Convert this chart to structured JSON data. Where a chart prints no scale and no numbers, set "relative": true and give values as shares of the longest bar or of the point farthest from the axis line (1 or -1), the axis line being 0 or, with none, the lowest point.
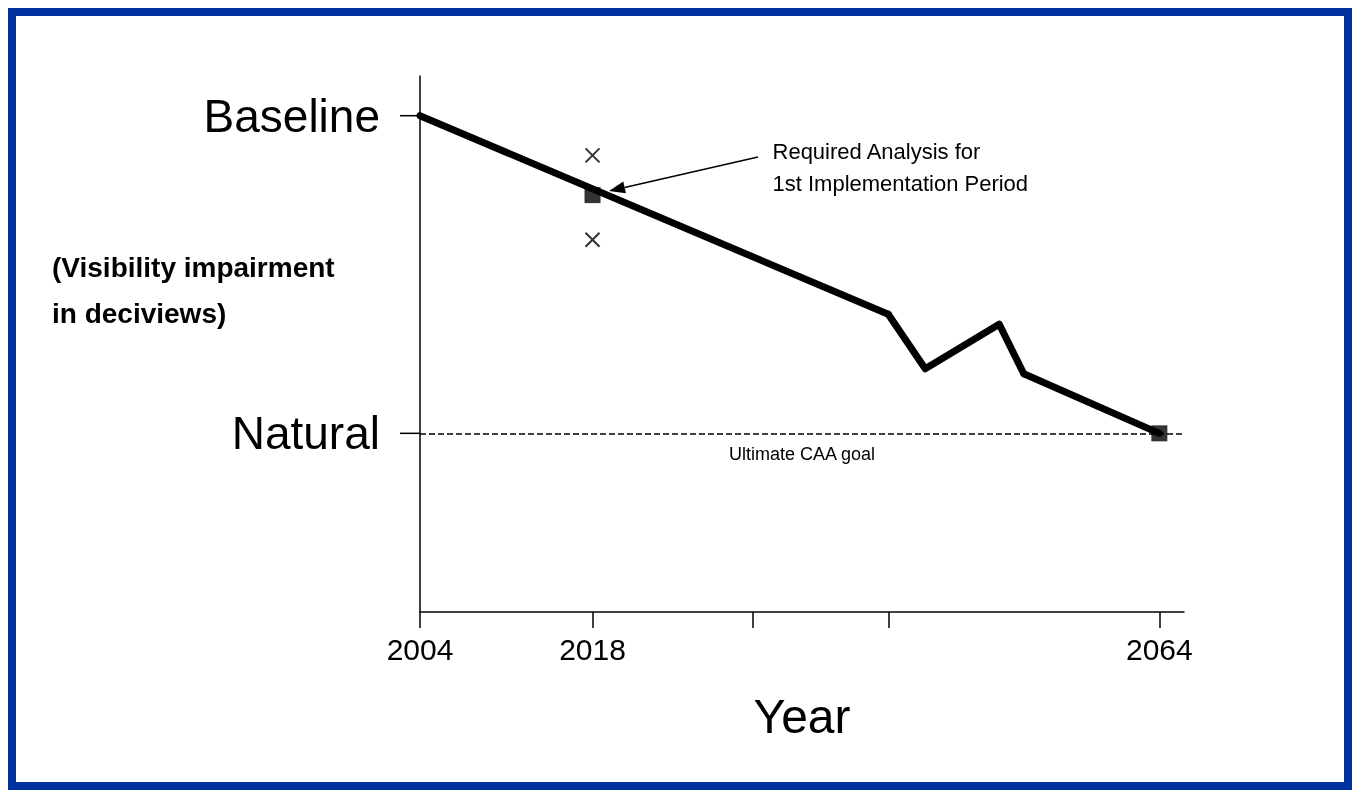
{
  "chart_data": {
    "type": "line",
    "relative": true,
    "xlabel": "Year",
    "ylabel": "(Visibility impairment in deciviews)",
    "xlim": [
      2004,
      2066
    ],
    "xticks": [
      2004,
      2018,
      {
        "value": 2031,
        "label": null
      },
      {
        "value": 2042,
        "label": null
      },
      2064
    ],
    "grid": false,
    "series": [
      {
        "color": "#000000",
        "x": [
          2004,
          2042
        ],
        "values": [
          1,
          0.6
        ],
        "marker": "none"
      },
      {
        "color": "#000000",
        "x": [
          2042,
          2045,
          2051,
          2053
        ],
        "values": [
          0.6,
          0.49,
          0.58,
          0.48
        ],
        "marker": "none"
      },
      {
        "color": "#000000",
        "x": [
          2053,
          2064
        ],
        "values": [
          0.48,
          0.36
        ],
        "marker": "none"
      },
      {
        "type": "scatter",
        "color": "#000000",
        "x": [
          2018,
          2064
        ],
        "values": [
          0.84,
          0.36
        ],
        "marker": "square"
      },
      {
        "type": "scatter",
        "color": "#000000",
        "x": [
          2018,
          2018
        ],
        "values": [
          0.92,
          0.75
        ],
        "marker": "cross"
      }
    ],
    "ref_lines": [
      {
        "axis": "y",
        "value": 0.36,
        "label": "Ultimate CAA goal",
        "line_style": "dashed",
        "color": "#000000"
      }
    ],
    "annotations": [
      {
        "text": "Baseline",
        "x": 2004,
        "y": 1
      },
      {
        "text": "Natural",
        "x": 2004,
        "y": 0.36
      },
      "Required Analysis for\n1st Implementation Period"
    ]
  }
}
